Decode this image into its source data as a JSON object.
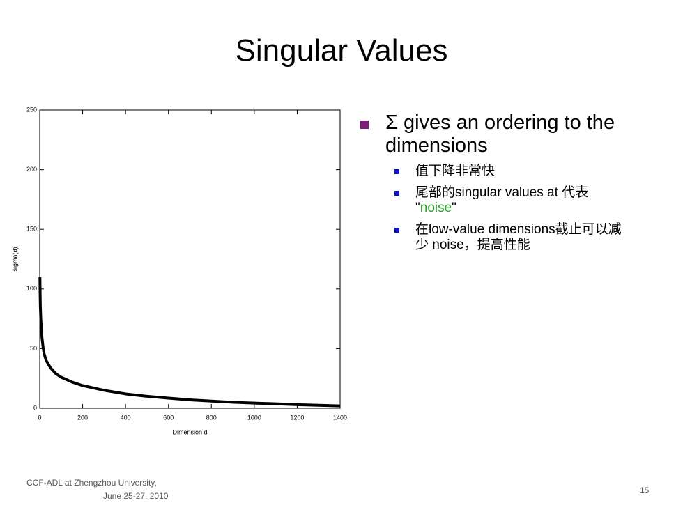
{
  "slide_title": "Singular Values",
  "chart_data": {
    "type": "line",
    "xlabel": "Dimension d",
    "ylabel": "sigma(d)",
    "color": "#000000",
    "x": [
      1,
      2,
      3,
      5,
      8,
      10,
      15,
      20,
      30,
      40,
      50,
      75,
      100,
      150,
      200,
      300,
      400,
      500,
      600,
      700,
      800,
      900,
      1000,
      1100,
      1200,
      1300,
      1400
    ],
    "values": [
      110,
      95,
      85,
      75,
      65,
      60,
      52,
      46,
      40,
      37,
      34,
      29,
      26,
      22,
      19,
      15,
      12,
      10,
      8.5,
      7,
      6,
      5,
      4.3,
      3.7,
      3,
      2.5,
      2
    ],
    "xlim": [
      0,
      1400
    ],
    "xticks": [
      0,
      200,
      400,
      600,
      800,
      1000,
      1200,
      1400
    ],
    "ylim": [
      0,
      250
    ],
    "yticks": [
      0,
      50,
      100,
      150,
      200,
      250
    ],
    "grid": false
  },
  "bullets": [
    {
      "text": "Σ gives an ordering to the dimensions",
      "children": [
        {
          "parts": [
            {
              "text": "值下降非常快"
            }
          ]
        },
        {
          "parts": [
            {
              "text": "尾部的singular values at 代表 \""
            },
            {
              "text": "noise",
              "color": "#2ca02c"
            },
            {
              "text": "\""
            }
          ]
        },
        {
          "parts": [
            {
              "text": "在low-value dimensions截止可以减少 noise，提高性能"
            }
          ]
        }
      ]
    }
  ],
  "footer": {
    "lines": [
      "CCF-ADL at Zhengzhou University,",
      "June 25-27, 2010"
    ],
    "page": "15"
  }
}
